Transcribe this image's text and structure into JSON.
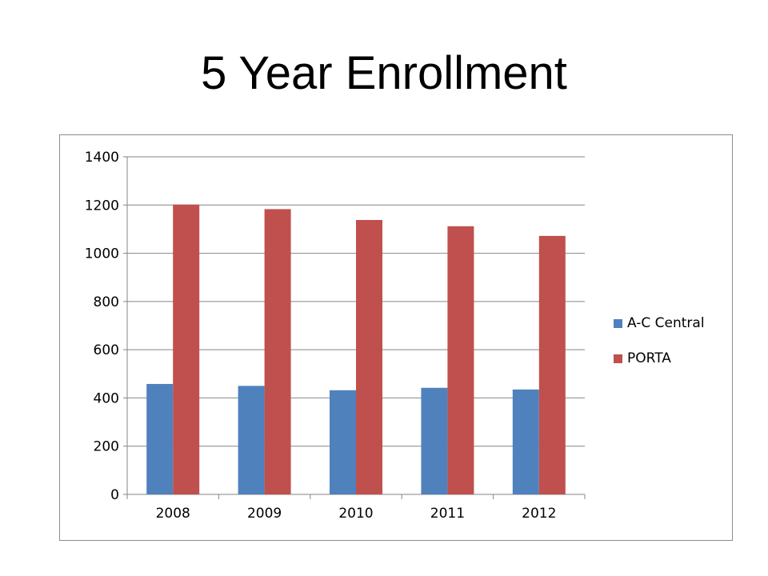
{
  "slide": {
    "title": "5 Year Enrollment"
  },
  "colors": {
    "a_c_central": "#4F81BD",
    "porta": "#C0504D",
    "gridline": "#868686",
    "axis": "#868686"
  },
  "chart_data": {
    "type": "bar",
    "title": "",
    "xlabel": "",
    "ylabel": "",
    "categories": [
      "2008",
      "2009",
      "2010",
      "2011",
      "2012"
    ],
    "series": [
      {
        "name": "A-C Central",
        "color": "#4F81BD",
        "values": [
          458,
          450,
          432,
          442,
          435
        ]
      },
      {
        "name": "PORTA",
        "color": "#C0504D",
        "values": [
          1202,
          1183,
          1138,
          1112,
          1072
        ]
      }
    ],
    "ylim": [
      0,
      1400
    ],
    "yticks": [
      "0",
      "200",
      "400",
      "600",
      "800",
      "1000",
      "1200",
      "1400"
    ],
    "grid": true,
    "legend_position": "right"
  }
}
